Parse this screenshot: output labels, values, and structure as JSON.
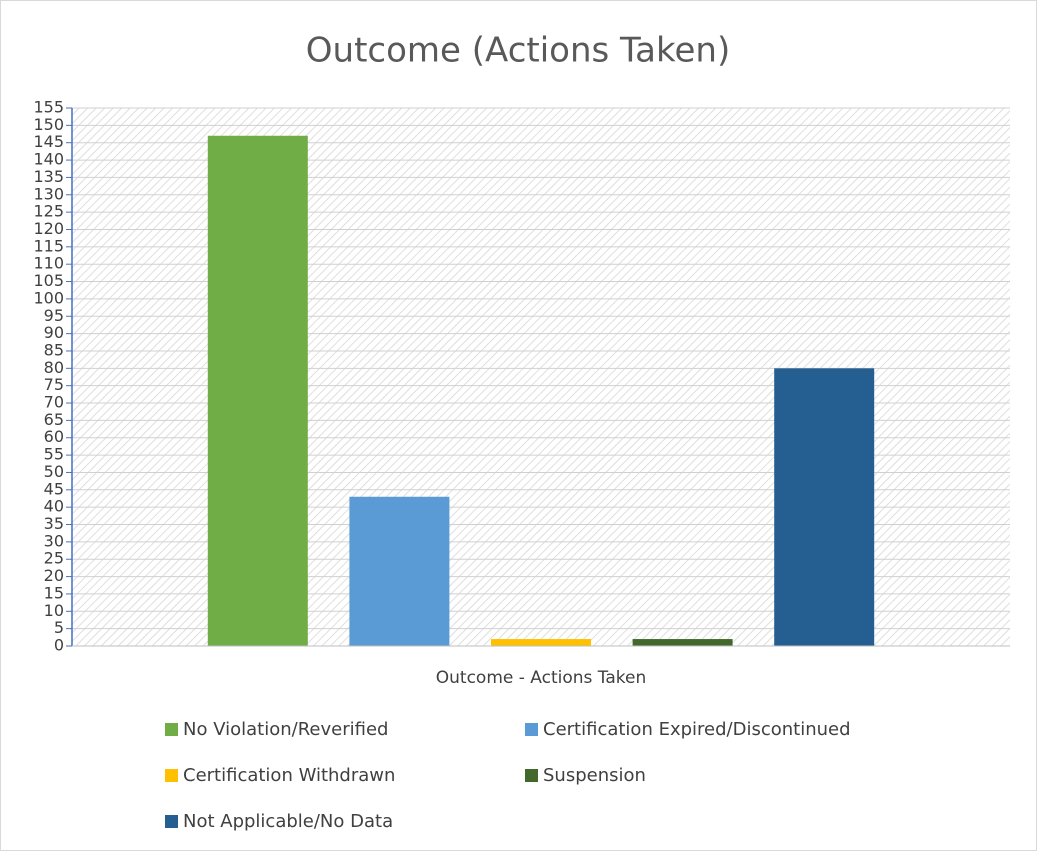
{
  "chart_data": {
    "type": "bar",
    "title": "Outcome (Actions Taken)",
    "categories": [
      "Outcome - Actions Taken"
    ],
    "series": [
      {
        "name": "No Violation/Reverified",
        "color": "#70ad47",
        "values": [
          147
        ]
      },
      {
        "name": "Certification Expired/Discontinued",
        "color": "#5b9bd5",
        "values": [
          43
        ]
      },
      {
        "name": "Certification Withdrawn",
        "color": "#ffc000",
        "values": [
          2
        ]
      },
      {
        "name": "Suspension",
        "color": "#43682b",
        "values": [
          2
        ]
      },
      {
        "name": "Not Applicable/No Data",
        "color": "#255e91",
        "values": [
          80
        ]
      }
    ],
    "ylim": [
      0,
      155
    ],
    "yticks": [
      0,
      5,
      10,
      15,
      20,
      25,
      30,
      35,
      40,
      45,
      50,
      55,
      60,
      65,
      70,
      75,
      80,
      85,
      90,
      95,
      100,
      105,
      110,
      115,
      120,
      125,
      130,
      135,
      140,
      145,
      150,
      155
    ],
    "grid": true,
    "legend": "bottom"
  }
}
